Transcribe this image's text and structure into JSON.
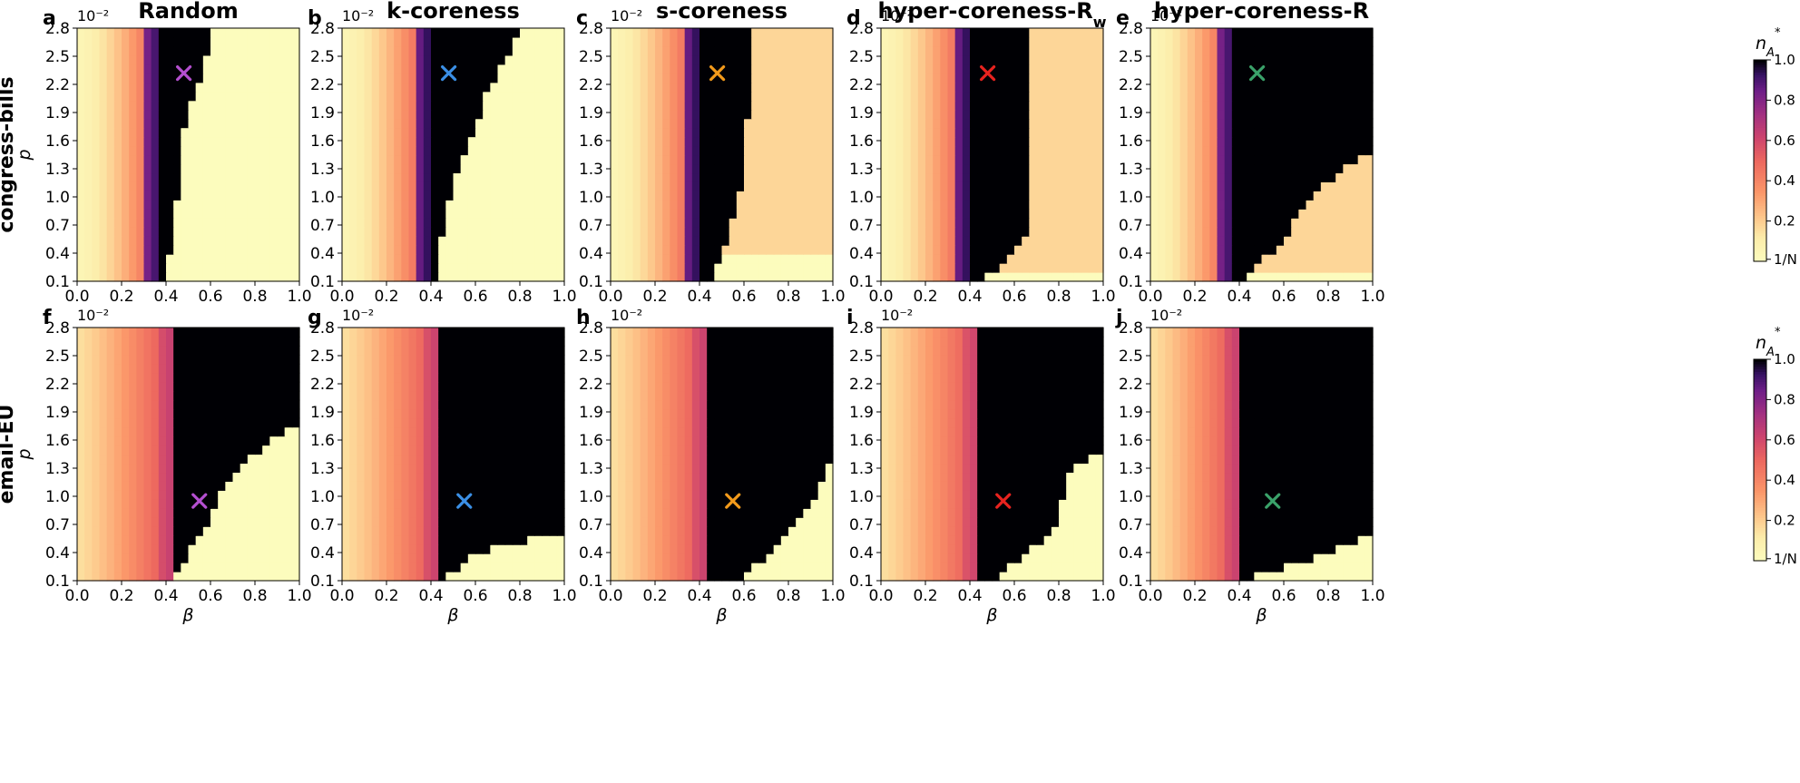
{
  "chart_data": {
    "type": "heatmap",
    "columns": [
      "Random",
      "k-coreness",
      "s-coreness",
      "hyper-coreness-R_w",
      "hyper-coreness-R"
    ],
    "column_titles": [
      {
        "text": "Random",
        "sub": ""
      },
      {
        "text": "k-coreness",
        "sub": ""
      },
      {
        "text": "s-coreness",
        "sub": ""
      },
      {
        "text": "hyper-coreness-R",
        "sub": "w"
      },
      {
        "text": "hyper-coreness-R",
        "sub": ""
      }
    ],
    "rows": [
      "congress-bills",
      "email-EU"
    ],
    "panel_letters": [
      "a",
      "b",
      "c",
      "d",
      "e",
      "f",
      "g",
      "h",
      "i",
      "j"
    ],
    "xlabel": "β",
    "ylabel": "p",
    "y_exponent_label": "10⁻²",
    "xticks": [
      "0.0",
      "0.2",
      "0.4",
      "0.6",
      "0.8",
      "1.0"
    ],
    "yticks": [
      "0.1",
      "0.4",
      "0.7",
      "1.0",
      "1.3",
      "1.6",
      "1.9",
      "2.2",
      "2.5",
      "2.8"
    ],
    "xlim": [
      0,
      1
    ],
    "ylim": [
      0.1,
      2.8
    ],
    "colorbar": {
      "label": "n",
      "label_sub": "A",
      "label_sup": "*",
      "ticks": [
        "1.0",
        "0.8",
        "0.6",
        "0.4",
        "0.2",
        "1/N"
      ],
      "tick_values": [
        1.0,
        0.8,
        0.6,
        0.4,
        0.2,
        0.01
      ],
      "colormap": "magma_r"
    },
    "markers": [
      {
        "panel": "a",
        "beta": 0.48,
        "p": 2.32,
        "color": "#b44fd0"
      },
      {
        "panel": "b",
        "beta": 0.48,
        "p": 2.32,
        "color": "#3b8fe6"
      },
      {
        "panel": "c",
        "beta": 0.48,
        "p": 2.32,
        "color": "#f29a1b"
      },
      {
        "panel": "d",
        "beta": 0.48,
        "p": 2.32,
        "color": "#e8231f"
      },
      {
        "panel": "e",
        "beta": 0.48,
        "p": 2.32,
        "color": "#3aa16a"
      },
      {
        "panel": "f",
        "beta": 0.55,
        "p": 0.95,
        "color": "#b44fd0"
      },
      {
        "panel": "g",
        "beta": 0.55,
        "p": 0.95,
        "color": "#3b8fe6"
      },
      {
        "panel": "h",
        "beta": 0.55,
        "p": 0.95,
        "color": "#f29a1b"
      },
      {
        "panel": "i",
        "beta": 0.55,
        "p": 0.95,
        "color": "#e8231f"
      },
      {
        "panel": "j",
        "beta": 0.55,
        "p": 0.95,
        "color": "#3aa16a"
      }
    ],
    "regions": [
      {
        "panel": "a",
        "transition_beta": 0.38,
        "boundary": [
          [
            0.1,
            0.4
          ],
          [
            0.4,
            0.42
          ],
          [
            0.7,
            0.44
          ],
          [
            1.0,
            0.45
          ],
          [
            1.3,
            0.46
          ],
          [
            1.6,
            0.47
          ],
          [
            1.9,
            0.5
          ],
          [
            2.2,
            0.55
          ],
          [
            2.5,
            0.58
          ],
          [
            2.8,
            0.62
          ]
        ],
        "upper_level": 0.01
      },
      {
        "panel": "b",
        "transition_beta": 0.4,
        "boundary": [
          [
            0.1,
            0.42
          ],
          [
            0.4,
            0.44
          ],
          [
            0.7,
            0.46
          ],
          [
            1.0,
            0.49
          ],
          [
            1.3,
            0.52
          ],
          [
            1.6,
            0.57
          ],
          [
            1.9,
            0.62
          ],
          [
            2.2,
            0.67
          ],
          [
            2.5,
            0.74
          ],
          [
            2.8,
            0.82
          ]
        ],
        "upper_level": 0.01
      },
      {
        "panel": "c",
        "transition_beta": 0.4,
        "boundary": [
          [
            0.1,
            0.45
          ],
          [
            0.4,
            0.5
          ],
          [
            0.7,
            0.54
          ],
          [
            1.0,
            0.58
          ],
          [
            1.3,
            0.6
          ],
          [
            1.6,
            0.6
          ],
          [
            1.9,
            0.62
          ],
          [
            2.2,
            0.63
          ],
          [
            2.5,
            0.63
          ],
          [
            2.8,
            0.63
          ]
        ],
        "upper_level": 0.18,
        "lower_cut": [
          [
            0.45,
            0.4
          ],
          [
            0.7,
            0.52
          ],
          [
            1.0,
            0.55
          ]
        ]
      },
      {
        "panel": "d",
        "transition_beta": 0.4,
        "boundary": [
          [
            0.1,
            0.44
          ],
          [
            0.4,
            0.6
          ],
          [
            0.7,
            0.67
          ],
          [
            1.0,
            0.67
          ],
          [
            1.3,
            0.67
          ],
          [
            1.6,
            0.67
          ],
          [
            1.9,
            0.67
          ],
          [
            2.2,
            0.67
          ],
          [
            2.5,
            0.67
          ],
          [
            2.8,
            0.67
          ]
        ],
        "upper_level": 0.18,
        "lower_cut": [
          [
            0.45,
            0.3
          ],
          [
            0.7,
            0.42
          ],
          [
            1.0,
            0.5
          ]
        ]
      },
      {
        "panel": "e",
        "transition_beta": 0.38,
        "boundary": [
          [
            0.1,
            0.42
          ],
          [
            0.4,
            0.54
          ],
          [
            0.7,
            0.64
          ],
          [
            1.0,
            0.72
          ],
          [
            1.3,
            0.86
          ],
          [
            1.6,
            1.1
          ],
          [
            1.9,
            1.1
          ],
          [
            2.2,
            1.1
          ],
          [
            2.5,
            1.1
          ],
          [
            2.8,
            1.1
          ]
        ],
        "upper_level": 0.18,
        "lower_cut": [
          [
            0.45,
            0.3
          ],
          [
            0.7,
            0.42
          ],
          [
            1.0,
            0.5
          ]
        ]
      },
      {
        "panel": "f",
        "transition_beta": 0.43,
        "boundary": [
          [
            0.1,
            0.44
          ],
          [
            0.4,
            0.5
          ],
          [
            0.7,
            0.58
          ],
          [
            1.0,
            0.64
          ],
          [
            1.3,
            0.72
          ],
          [
            1.6,
            0.88
          ],
          [
            1.9,
            1.1
          ],
          [
            2.2,
            1.1
          ],
          [
            2.5,
            1.1
          ],
          [
            2.8,
            1.1
          ]
        ],
        "upper_level": 0.01
      },
      {
        "panel": "g",
        "transition_beta": 0.44,
        "boundary": [
          [
            0.1,
            0.46
          ],
          [
            0.4,
            0.6
          ],
          [
            0.7,
            1.1
          ],
          [
            1.0,
            1.1
          ],
          [
            1.3,
            1.1
          ],
          [
            1.6,
            1.1
          ],
          [
            1.9,
            1.1
          ],
          [
            2.2,
            1.1
          ],
          [
            2.5,
            1.1
          ],
          [
            2.8,
            1.1
          ]
        ],
        "upper_level": 0.01
      },
      {
        "panel": "h",
        "transition_beta": 0.44,
        "boundary": [
          [
            0.1,
            0.58
          ],
          [
            0.4,
            0.72
          ],
          [
            0.7,
            0.84
          ],
          [
            1.0,
            0.92
          ],
          [
            1.3,
            0.98
          ],
          [
            1.6,
            1.1
          ],
          [
            1.9,
            1.1
          ],
          [
            2.2,
            1.1
          ],
          [
            2.5,
            1.1
          ],
          [
            2.8,
            1.1
          ]
        ],
        "upper_level": 0.01
      },
      {
        "panel": "i",
        "transition_beta": 0.45,
        "boundary": [
          [
            0.1,
            0.5
          ],
          [
            0.4,
            0.66
          ],
          [
            0.7,
            0.8
          ],
          [
            1.0,
            0.82
          ],
          [
            1.3,
            0.86
          ],
          [
            1.6,
            1.1
          ],
          [
            1.9,
            1.1
          ],
          [
            2.2,
            1.1
          ],
          [
            2.5,
            1.1
          ],
          [
            2.8,
            1.1
          ]
        ],
        "upper_level": 0.01
      },
      {
        "panel": "j",
        "transition_beta": 0.4,
        "boundary": [
          [
            0.1,
            0.42
          ],
          [
            0.4,
            0.8
          ],
          [
            0.7,
            1.1
          ],
          [
            1.0,
            1.1
          ],
          [
            1.3,
            1.1
          ],
          [
            1.6,
            1.1
          ],
          [
            1.9,
            1.1
          ],
          [
            2.2,
            1.1
          ],
          [
            2.5,
            1.1
          ],
          [
            2.8,
            1.1
          ]
        ],
        "upper_level": 0.01
      }
    ]
  }
}
